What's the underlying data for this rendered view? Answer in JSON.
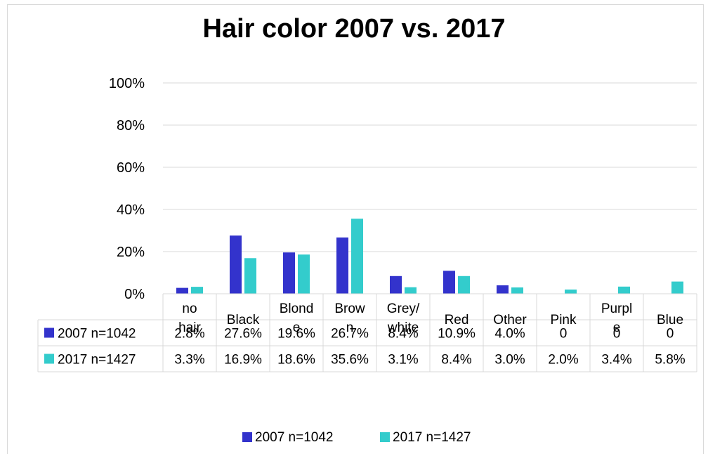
{
  "chart_data": {
    "type": "bar",
    "title": "Hair color 2007 vs. 2017",
    "categories": [
      [
        "no",
        "hair"
      ],
      [
        "Black"
      ],
      [
        "Blond",
        "e"
      ],
      [
        "Brow",
        "n"
      ],
      [
        "Grey/",
        "white"
      ],
      [
        "Red"
      ],
      [
        "Other"
      ],
      [
        "Pink"
      ],
      [
        "Purpl",
        "e"
      ],
      [
        "Blue"
      ]
    ],
    "y_ticks": [
      "0%",
      "20%",
      "40%",
      "60%",
      "80%",
      "100%"
    ],
    "ylim": [
      0,
      100
    ],
    "grid": true,
    "legend_position": "bottom",
    "series": [
      {
        "name": "2007 n=1042",
        "color": "#3333cc",
        "values": [
          2.8,
          27.6,
          19.6,
          26.7,
          8.4,
          10.9,
          4.0,
          0,
          0,
          0
        ],
        "labels": [
          "2.8%",
          "27.6%",
          "19.6%",
          "26.7%",
          "8.4%",
          "10.9%",
          "4.0%",
          "0",
          "0",
          "0"
        ]
      },
      {
        "name": "2017 n=1427",
        "color": "#33cccc",
        "values": [
          3.3,
          16.9,
          18.6,
          35.6,
          3.1,
          8.4,
          3.0,
          2.0,
          3.4,
          5.8
        ],
        "labels": [
          "3.3%",
          "16.9%",
          "18.6%",
          "35.6%",
          "3.1%",
          "8.4%",
          "3.0%",
          "2.0%",
          "3.4%",
          "5.8%"
        ]
      }
    ]
  }
}
